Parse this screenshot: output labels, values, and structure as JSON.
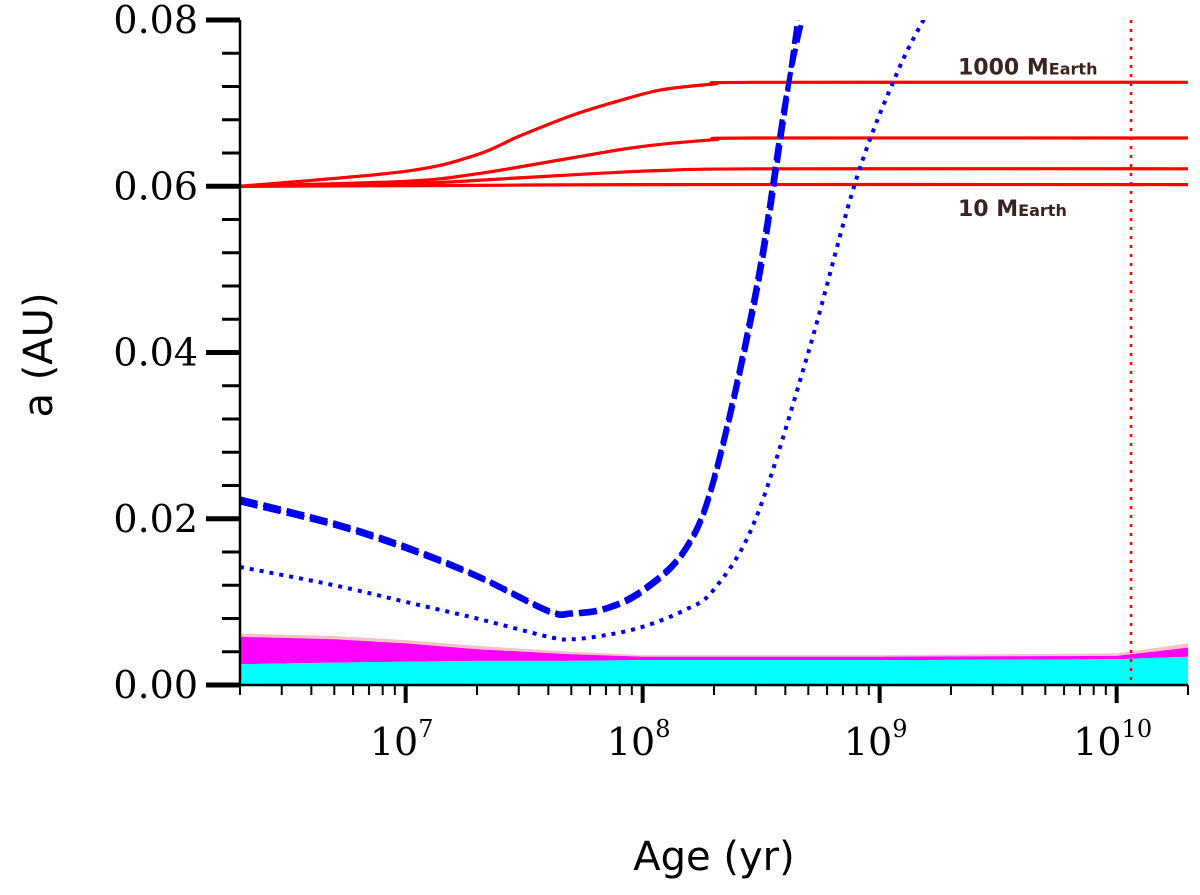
{
  "chart_data": {
    "type": "line",
    "title": "",
    "xlabel": "Age (yr)",
    "ylabel": "a (AU)",
    "xscale": "log",
    "xlim": [
      2000000,
      20000000000
    ],
    "ylim": [
      0,
      0.08
    ],
    "grid": false,
    "x_ticks": [
      {
        "base": "10",
        "exp": "7",
        "value": 10000000
      },
      {
        "base": "10",
        "exp": "8",
        "value": 100000000
      },
      {
        "base": "10",
        "exp": "9",
        "value": 1000000000
      },
      {
        "base": "10",
        "exp": "10",
        "value": 10000000000
      }
    ],
    "y_ticks": [
      {
        "label": "0.00",
        "value": 0.0
      },
      {
        "label": "0.02",
        "value": 0.02
      },
      {
        "label": "0.04",
        "value": 0.04
      },
      {
        "label": "0.06",
        "value": 0.06
      },
      {
        "label": "0.08",
        "value": 0.08
      }
    ],
    "annotations": [
      {
        "main": "1000 M",
        "sub": "Earth",
        "x": 2500000000,
        "y": 0.0745
      },
      {
        "main": "10 M",
        "sub": "Earth",
        "x": 2500000000,
        "y": 0.0575
      }
    ],
    "vline": {
      "x": 11500000000,
      "color": "#ff0000",
      "style": "dotted"
    },
    "bands": [
      {
        "name": "pink-band",
        "color": "#f4c2c2",
        "x": [
          2000000,
          5000000,
          10000000,
          20000000,
          50000000,
          100000000,
          1000000000,
          10000000000,
          20000000000
        ],
        "lower": [
          0.0058,
          0.0055,
          0.005,
          0.0043,
          0.0037,
          0.0034,
          0.0034,
          0.0035,
          0.0045
        ],
        "upper": [
          0.0062,
          0.0059,
          0.0054,
          0.0047,
          0.004,
          0.0036,
          0.0036,
          0.0038,
          0.005
        ]
      },
      {
        "name": "magenta-band",
        "color": "#ff00ff",
        "x": [
          2000000,
          5000000,
          10000000,
          20000000,
          50000000,
          100000000,
          1000000000,
          10000000000,
          20000000000
        ],
        "lower": [
          0.0025,
          0.0027,
          0.0028,
          0.0029,
          0.0029,
          0.003,
          0.003,
          0.0031,
          0.0034
        ],
        "upper": [
          0.0058,
          0.0055,
          0.005,
          0.0043,
          0.0037,
          0.0034,
          0.0034,
          0.0035,
          0.0045
        ]
      },
      {
        "name": "cyan-band",
        "color": "#00ffff",
        "x": [
          2000000,
          5000000,
          10000000,
          20000000,
          50000000,
          100000000,
          1000000000,
          10000000000,
          20000000000
        ],
        "lower": [
          0,
          0,
          0,
          0,
          0,
          0,
          0,
          0,
          0
        ],
        "upper": [
          0.0025,
          0.0027,
          0.0028,
          0.0029,
          0.0029,
          0.003,
          0.003,
          0.0031,
          0.0034
        ]
      }
    ],
    "series": [
      {
        "name": "planet-1000-mearth",
        "color": "#ff0000",
        "style": "solid",
        "x": [
          2000000,
          10000000,
          20000000,
          30000000,
          50000000,
          80000000,
          120000000,
          200000000,
          300000000,
          20000000000
        ],
        "y": [
          0.06,
          0.0618,
          0.0638,
          0.066,
          0.0685,
          0.0703,
          0.0716,
          0.0723,
          0.0725,
          0.0725
        ]
      },
      {
        "name": "planet-300-mearth",
        "color": "#ff0000",
        "style": "solid",
        "x": [
          2000000,
          10000000,
          20000000,
          50000000,
          100000000,
          200000000,
          300000000,
          20000000000
        ],
        "y": [
          0.06,
          0.0606,
          0.0615,
          0.0634,
          0.0648,
          0.0656,
          0.0658,
          0.0658
        ]
      },
      {
        "name": "planet-100-mearth",
        "color": "#ff0000",
        "style": "solid",
        "x": [
          2000000,
          10000000,
          30000000,
          60000000,
          120000000,
          300000000,
          20000000000
        ],
        "y": [
          0.06,
          0.0603,
          0.061,
          0.0615,
          0.0619,
          0.0621,
          0.0621
        ]
      },
      {
        "name": "planet-10-mearth",
        "color": "#ff0000",
        "style": "solid",
        "x": [
          2000000,
          20000000,
          100000000,
          20000000000
        ],
        "y": [
          0.06,
          0.0601,
          0.0602,
          0.0602
        ]
      },
      {
        "name": "corotation-dashed-a",
        "color": "#0000ee",
        "style": "dashed",
        "x": [
          2000000,
          5000000,
          10000000,
          20000000,
          40000000,
          50000000,
          70000000,
          100000000,
          150000000,
          200000000,
          300000000,
          400000000,
          500000000
        ],
        "y": [
          0.0224,
          0.0195,
          0.0167,
          0.0132,
          0.009,
          0.0087,
          0.0093,
          0.0115,
          0.0163,
          0.025,
          0.0476,
          0.0703,
          0.0832
        ]
      },
      {
        "name": "corotation-dashed-b",
        "color": "#0000ee",
        "style": "dashed",
        "x": [
          2000000,
          5000000,
          10000000,
          20000000,
          40000000,
          50000000,
          70000000,
          100000000,
          150000000,
          200000000,
          300000000,
          380000000,
          450000000
        ],
        "y": [
          0.022,
          0.0192,
          0.0164,
          0.013,
          0.0088,
          0.0085,
          0.0091,
          0.0112,
          0.016,
          0.0245,
          0.0465,
          0.065,
          0.08
        ]
      },
      {
        "name": "corotation-dotted",
        "color": "#0000ee",
        "style": "dotted",
        "x": [
          2000000,
          5000000,
          10000000,
          20000000,
          40000000,
          50000000,
          70000000,
          100000000,
          150000000,
          200000000,
          300000000,
          500000000,
          800000000,
          1200000000,
          1600000000
        ],
        "y": [
          0.0142,
          0.012,
          0.01,
          0.008,
          0.0058,
          0.0055,
          0.006,
          0.007,
          0.009,
          0.0115,
          0.02,
          0.04,
          0.061,
          0.074,
          0.081
        ]
      }
    ]
  }
}
